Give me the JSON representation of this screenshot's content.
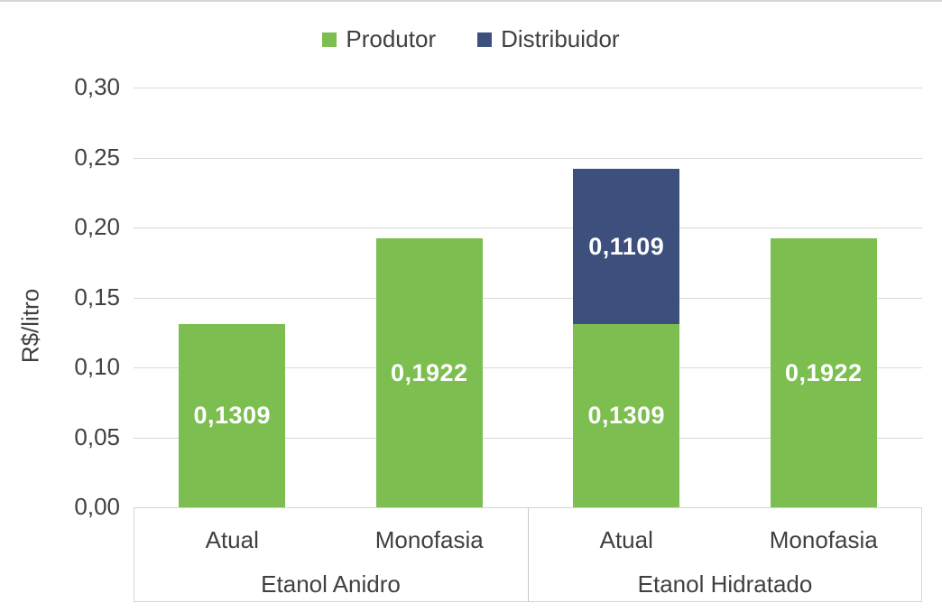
{
  "chart_data": {
    "type": "bar",
    "stacked": true,
    "title": "",
    "xlabel": "",
    "ylabel": "R$/litro",
    "ylim": [
      0,
      0.3
    ],
    "grid": true,
    "legend_position": "top",
    "yticks": [
      {
        "value": 0.0,
        "label": "0,00"
      },
      {
        "value": 0.05,
        "label": "0,05"
      },
      {
        "value": 0.1,
        "label": "0,10"
      },
      {
        "value": 0.15,
        "label": "0,15"
      },
      {
        "value": 0.2,
        "label": "0,20"
      },
      {
        "value": 0.25,
        "label": "0,25"
      },
      {
        "value": 0.3,
        "label": "0,30"
      }
    ],
    "groups": [
      {
        "label": "Etanol Anidro",
        "categories": [
          "Atual",
          "Monofasia"
        ]
      },
      {
        "label": "Etanol Hidratado",
        "categories": [
          "Atual",
          "Monofasia"
        ]
      }
    ],
    "series": [
      {
        "name": "Produtor",
        "color": "#7CBE50",
        "values": [
          0.1309,
          0.1922,
          0.1309,
          0.1922
        ],
        "labels": [
          "0,1309",
          "0,1922",
          "0,1309",
          "0,1922"
        ]
      },
      {
        "name": "Distribuidor",
        "color": "#3C4F7D",
        "values": [
          0,
          0,
          0.1109,
          0
        ],
        "labels": [
          "",
          "",
          "0,1109",
          ""
        ]
      }
    ],
    "value_label_color": "#FFFFFF"
  },
  "colors": {
    "gridline": "#D9D9D9",
    "axis_text": "#404040",
    "axis_box_border": "#D4D4D4"
  }
}
